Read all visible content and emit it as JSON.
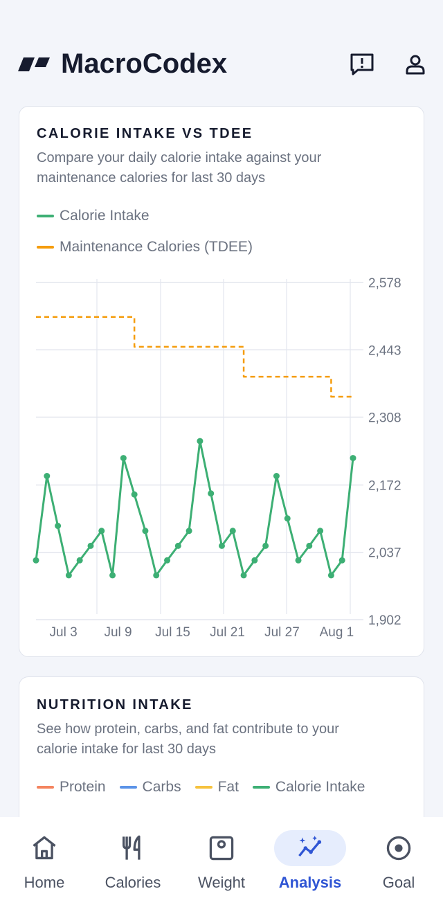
{
  "header": {
    "title": "MacroCodex"
  },
  "cards": [
    {
      "title": "CALORIE INTAKE VS TDEE",
      "subtitle": "Compare your daily calorie intake against your maintenance calories for last 30 days",
      "chart": {
        "type": "line",
        "categories": [
          null,
          null,
          "Jul 3",
          null,
          null,
          null,
          null,
          "Jul 9",
          null,
          null,
          null,
          null,
          "Jul 15",
          null,
          null,
          null,
          null,
          "Jul 21",
          null,
          null,
          null,
          null,
          "Jul 27",
          null,
          null,
          null,
          null,
          "Aug 1",
          null,
          null
        ],
        "series": [
          {
            "name": "Calorie Intake",
            "color": "#3daf74",
            "values": [
              2021,
              2190,
              2090,
              1991,
              2021,
              2050,
              2080,
              1991,
              2226,
              2153,
              2080,
              1991,
              2021,
              2050,
              2080,
              2260,
              2155,
              2050,
              2080,
              1991,
              2021,
              2050,
              2190,
              2105,
              2021,
              2050,
              2080,
              1991,
              2021,
              2226
            ]
          },
          {
            "name": "Maintenance Calories (TDEE)",
            "color": "#f59c0b",
            "dashed": true,
            "step": true,
            "values": [
              2509,
              2509,
              2509,
              2509,
              2509,
              2509,
              2509,
              2509,
              2509,
              2449,
              2449,
              2449,
              2449,
              2449,
              2449,
              2449,
              2449,
              2449,
              2449,
              2389,
              2389,
              2389,
              2389,
              2389,
              2389,
              2389,
              2389,
              2349,
              2349,
              2349
            ]
          }
        ],
        "ylim": [
          1902,
          2578
        ],
        "yticks": [
          {
            "value": 1902,
            "label": "1,902"
          },
          {
            "value": 2037,
            "label": "2,037"
          },
          {
            "value": 2172,
            "label": "2,172"
          },
          {
            "value": 2308,
            "label": "2,308"
          },
          {
            "value": 2443,
            "label": "2,443"
          },
          {
            "value": 2578,
            "label": "2,578"
          }
        ],
        "grid": true
      }
    },
    {
      "title": "NUTRITION INTAKE",
      "subtitle": "See how protein, carbs, and fat contribute to your calorie intake for last 30 days",
      "legend": [
        {
          "name": "Protein",
          "color": "#f4845f"
        },
        {
          "name": "Carbs",
          "color": "#5b93e8"
        },
        {
          "name": "Fat",
          "color": "#f6c23e"
        },
        {
          "name": "Calorie Intake",
          "color": "#3daf74"
        }
      ]
    }
  ],
  "nav": {
    "items": [
      "Home",
      "Calories",
      "Weight",
      "Analysis",
      "Goal"
    ],
    "active": 3
  }
}
